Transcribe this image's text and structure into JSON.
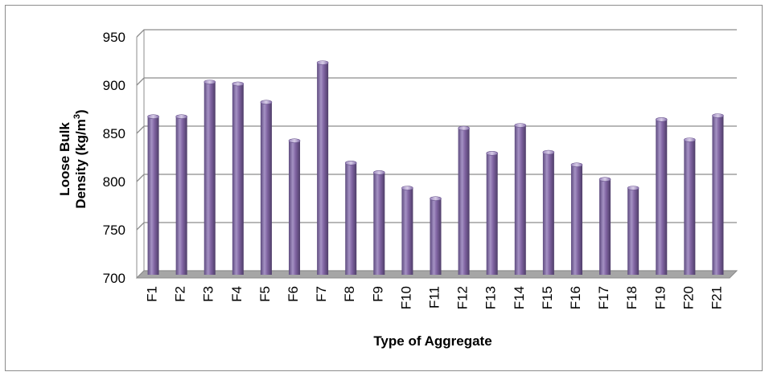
{
  "chart_data": {
    "type": "bar",
    "title": "",
    "xlabel": "Type of Aggregate",
    "ylabel_line1": "Loose Bulk",
    "ylabel_line2_prefix": "Density (kg/m",
    "ylabel_superscript": "3",
    "ylabel_line2_suffix": ")",
    "ylim": [
      700,
      950
    ],
    "yticks": [
      700,
      750,
      800,
      850,
      900,
      950
    ],
    "grid": true,
    "legend": "none",
    "categories": [
      "F1",
      "F2",
      "F3",
      "F4",
      "F5",
      "F6",
      "F7",
      "F8",
      "F9",
      "F10",
      "F11",
      "F12",
      "F13",
      "F14",
      "F15",
      "F16",
      "F17",
      "F18",
      "F19",
      "F20",
      "F21"
    ],
    "series": [
      {
        "values": [
          864,
          864,
          900,
          898,
          879,
          839,
          920,
          816,
          806,
          790,
          779,
          852,
          826,
          855,
          827,
          814,
          799,
          790,
          861,
          840,
          865
        ]
      }
    ],
    "colors": {
      "bar": "#8064a2",
      "bar_light": "#b9a8d2",
      "bar_dark": "#4e3d68",
      "floor": "#a6a6a6",
      "grid": "#8c8c8c"
    }
  }
}
